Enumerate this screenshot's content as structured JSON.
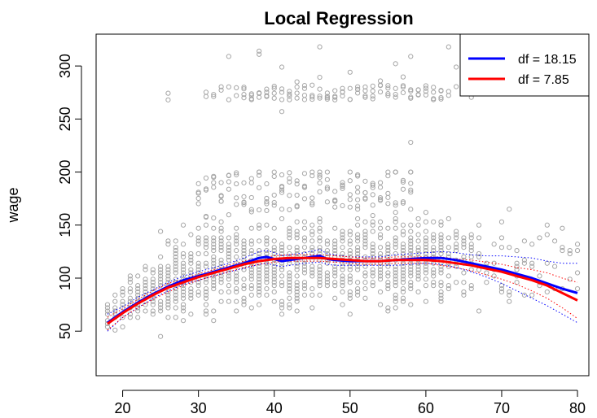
{
  "chart_data": {
    "type": "scatter",
    "title": "Local Regression",
    "xlabel": "",
    "ylabel": "wage",
    "xlim": [
      16.5,
      81.5
    ],
    "ylim": [
      8,
      330
    ],
    "xticks": [
      20,
      30,
      40,
      50,
      60,
      70,
      80
    ],
    "yticks": [
      50,
      100,
      150,
      200,
      250,
      300
    ],
    "grid": false,
    "legend_position": "top-right",
    "points": {
      "color": "#a6a6a6",
      "age_range": [
        18,
        80
      ],
      "bands": [
        {
          "label": "main cluster",
          "age_range": [
            18,
            80
          ],
          "wage_range": [
            20,
            200
          ]
        },
        {
          "label": "high earners",
          "age_range": [
            26,
            66
          ],
          "wage_range": [
            255,
            320
          ]
        }
      ]
    },
    "series": [
      {
        "name": "df = 18.15",
        "color": "#0000ff",
        "x": [
          18,
          20,
          22,
          24,
          26,
          28,
          30,
          32,
          34,
          36,
          38,
          39,
          40,
          41,
          42,
          44,
          46,
          47,
          48,
          50,
          52,
          54,
          56,
          58,
          60,
          62,
          64,
          66,
          68,
          70,
          72,
          74,
          76,
          78,
          80
        ],
        "y": [
          58,
          68,
          77,
          85,
          92,
          98,
          102,
          106,
          110,
          114,
          119,
          120,
          118,
          116,
          117,
          119,
          121,
          118,
          117,
          116,
          116,
          116,
          117,
          118,
          119,
          119,
          117,
          114,
          111,
          108,
          104,
          100,
          95,
          90,
          86
        ],
        "ci_lower": [
          50,
          63,
          72,
          81,
          88,
          94,
          98,
          102,
          106,
          109,
          113,
          114,
          112,
          111,
          112,
          114,
          115,
          113,
          112,
          112,
          112,
          112,
          112,
          113,
          114,
          113,
          110,
          106,
          101,
          95,
          88,
          81,
          74,
          66,
          58
        ],
        "ci_upper": [
          66,
          73,
          82,
          89,
          96,
          102,
          106,
          110,
          114,
          119,
          125,
          126,
          124,
          121,
          122,
          124,
          127,
          123,
          122,
          120,
          120,
          120,
          122,
          123,
          124,
          125,
          124,
          122,
          121,
          121,
          120,
          119,
          116,
          114,
          114
        ]
      },
      {
        "name": "df = 7.85",
        "color": "#ff0000",
        "x": [
          18,
          20,
          22,
          24,
          26,
          28,
          30,
          32,
          34,
          36,
          38,
          40,
          42,
          44,
          46,
          48,
          50,
          52,
          54,
          56,
          58,
          60,
          62,
          64,
          66,
          68,
          70,
          72,
          74,
          76,
          78,
          80
        ],
        "y": [
          57,
          67,
          76,
          84,
          91,
          96,
          101,
          105,
          109,
          113,
          116,
          118,
          119,
          119,
          119,
          118,
          117,
          116,
          116,
          117,
          117,
          117,
          116,
          114,
          112,
          109,
          106,
          102,
          98,
          93,
          86,
          79
        ],
        "ci_lower": [
          51,
          63,
          72,
          80,
          87,
          93,
          98,
          102,
          106,
          110,
          113,
          115,
          116,
          116,
          116,
          115,
          114,
          113,
          113,
          114,
          114,
          114,
          112,
          110,
          107,
          103,
          99,
          94,
          88,
          81,
          72,
          62
        ],
        "ci_upper": [
          63,
          71,
          80,
          88,
          95,
          99,
          104,
          108,
          112,
          116,
          119,
          121,
          122,
          122,
          122,
          121,
          120,
          119,
          119,
          120,
          120,
          120,
          120,
          118,
          117,
          115,
          113,
          110,
          108,
          105,
          100,
          96
        ]
      }
    ]
  }
}
